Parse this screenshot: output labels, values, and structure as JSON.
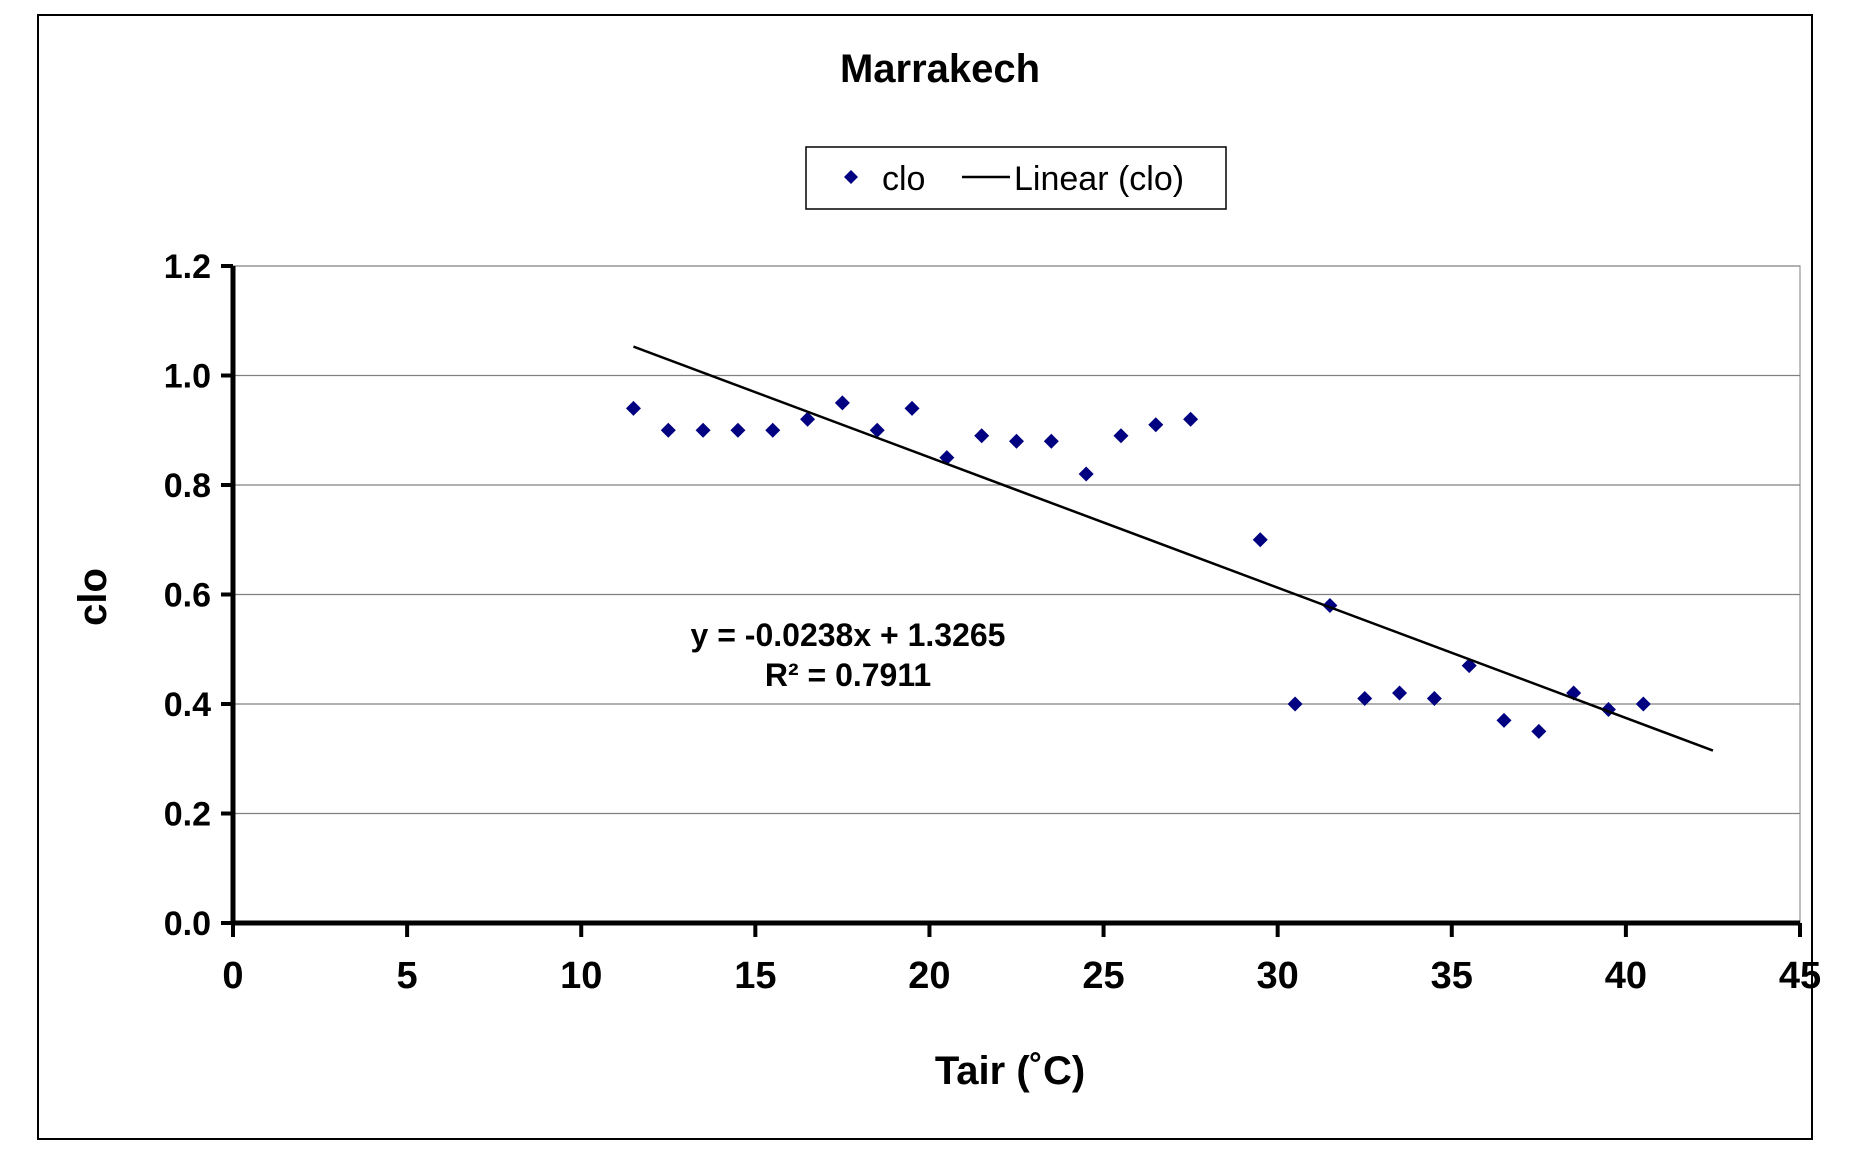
{
  "chart_data": {
    "type": "scatter",
    "title": "Marrakech",
    "xlabel": "Tair (˚C)",
    "ylabel": "clo",
    "xlim": [
      0,
      45
    ],
    "ylim": [
      0,
      1.2
    ],
    "x_ticks": [
      "0",
      "5",
      "10",
      "15",
      "20",
      "25",
      "30",
      "35",
      "40",
      "45"
    ],
    "y_ticks": [
      "0.0",
      "0.2",
      "0.4",
      "0.6",
      "0.8",
      "1.0",
      "1.2"
    ],
    "grid": "horizontal",
    "legend": {
      "position": "top-center",
      "entries": [
        "clo",
        "Linear (clo)"
      ]
    },
    "series": [
      {
        "name": "clo",
        "color": "#000080",
        "marker": "diamond",
        "points": [
          [
            11.5,
            0.94
          ],
          [
            12.5,
            0.9
          ],
          [
            13.5,
            0.9
          ],
          [
            14.5,
            0.9
          ],
          [
            15.5,
            0.9
          ],
          [
            16.5,
            0.92
          ],
          [
            17.5,
            0.95
          ],
          [
            18.5,
            0.9
          ],
          [
            19.5,
            0.94
          ],
          [
            20.5,
            0.85
          ],
          [
            21.5,
            0.89
          ],
          [
            22.5,
            0.88
          ],
          [
            23.5,
            0.88
          ],
          [
            24.5,
            0.82
          ],
          [
            25.5,
            0.89
          ],
          [
            26.5,
            0.91
          ],
          [
            27.5,
            0.92
          ],
          [
            29.5,
            0.7
          ],
          [
            30.5,
            0.4
          ],
          [
            31.5,
            0.58
          ],
          [
            32.5,
            0.41
          ],
          [
            33.5,
            0.42
          ],
          [
            34.5,
            0.41
          ],
          [
            35.5,
            0.47
          ],
          [
            36.5,
            0.37
          ],
          [
            37.5,
            0.35
          ],
          [
            38.5,
            0.42
          ],
          [
            39.5,
            0.39
          ],
          [
            40.5,
            0.4
          ]
        ]
      }
    ],
    "trendline": {
      "name": "Linear (clo)",
      "color": "#000000",
      "slope": -0.0238,
      "intercept": 1.3265,
      "x_range": [
        11.5,
        42.5
      ],
      "equation": "y = -0.0238x + 1.3265",
      "r_squared": "R² = 0.7911"
    }
  }
}
